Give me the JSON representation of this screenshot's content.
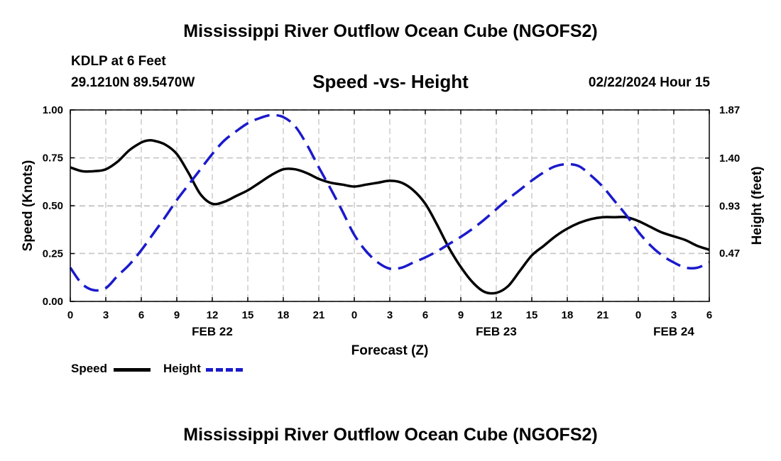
{
  "page": {
    "title": "Mississippi River Outflow Ocean Cube (NGOFS2)",
    "footer_title": "Mississippi River Outflow Ocean Cube (NGOFS2)",
    "station": "KDLP at 6 Feet",
    "coordinates": "29.1210N  89.5470W",
    "subtitle": "Speed -vs- Height",
    "timestamp": "02/22/2024 Hour 15"
  },
  "chart_data": {
    "type": "line",
    "title": "Speed -vs- Height",
    "xlabel": "Forecast (Z)",
    "ylabel_left": "Speed (Knots)",
    "ylabel_right": "Height (feet)",
    "x_range": [
      0,
      54
    ],
    "x_tick_values": [
      0,
      3,
      6,
      9,
      12,
      15,
      18,
      21,
      24,
      27,
      30,
      33,
      36,
      39,
      42,
      45,
      48,
      51,
      54
    ],
    "x_tick_labels": [
      "0",
      "3",
      "6",
      "9",
      "12",
      "15",
      "18",
      "21",
      "0",
      "3",
      "6",
      "9",
      "12",
      "15",
      "18",
      "21",
      "0",
      "3",
      "6"
    ],
    "date_labels": [
      {
        "label": "FEB 22",
        "at": 12
      },
      {
        "label": "FEB 23",
        "at": 36
      },
      {
        "label": "FEB 24",
        "at": 51
      }
    ],
    "ylim_left": [
      0,
      1.0
    ],
    "y_ticks_left": [
      "0.00",
      "0.25",
      "0.50",
      "0.75",
      "1.00"
    ],
    "ylim_right": [
      0,
      1.87
    ],
    "y_ticks_right": [
      "0.47",
      "0.93",
      "1.40",
      "1.87"
    ],
    "grid": true,
    "series": [
      {
        "name": "Speed",
        "axis": "left",
        "color": "#000000",
        "style": "solid",
        "x": [
          0,
          1,
          2,
          3,
          4,
          5,
          6,
          6.5,
          7,
          8,
          9,
          10,
          11,
          12,
          13,
          14,
          15,
          16,
          17,
          18,
          19,
          20,
          21,
          22,
          23,
          24,
          25,
          26,
          27,
          28,
          29,
          30,
          31,
          32,
          33,
          34,
          35,
          36,
          37,
          38,
          39,
          40,
          41,
          42,
          43,
          44,
          45,
          46,
          47,
          48,
          49,
          50,
          51,
          52,
          53,
          54
        ],
        "values": [
          0.7,
          0.68,
          0.68,
          0.69,
          0.73,
          0.79,
          0.83,
          0.84,
          0.84,
          0.82,
          0.77,
          0.67,
          0.56,
          0.51,
          0.52,
          0.55,
          0.58,
          0.62,
          0.66,
          0.69,
          0.69,
          0.67,
          0.64,
          0.62,
          0.61,
          0.6,
          0.61,
          0.62,
          0.63,
          0.62,
          0.58,
          0.51,
          0.4,
          0.28,
          0.18,
          0.1,
          0.05,
          0.045,
          0.08,
          0.16,
          0.24,
          0.29,
          0.34,
          0.38,
          0.41,
          0.43,
          0.44,
          0.44,
          0.44,
          0.42,
          0.39,
          0.36,
          0.34,
          0.32,
          0.29,
          0.27
        ]
      },
      {
        "name": "Height",
        "axis": "right",
        "color": "#1a1acc",
        "style": "dashed",
        "x": [
          0,
          1,
          2,
          3,
          4,
          5,
          6,
          7,
          8,
          9,
          10,
          11,
          12,
          13,
          14,
          15,
          16,
          17,
          18,
          19,
          20,
          21,
          22,
          23,
          24,
          25,
          26,
          27,
          28,
          29,
          30,
          31,
          32,
          33,
          34,
          35,
          36,
          37,
          38,
          39,
          40,
          41,
          42,
          43,
          44,
          45,
          46,
          47,
          48,
          49,
          50,
          51,
          52,
          53,
          54
        ],
        "values": [
          0.33,
          0.17,
          0.11,
          0.13,
          0.25,
          0.36,
          0.5,
          0.66,
          0.82,
          0.99,
          1.14,
          1.29,
          1.44,
          1.57,
          1.66,
          1.74,
          1.79,
          1.82,
          1.8,
          1.71,
          1.53,
          1.31,
          1.1,
          0.88,
          0.65,
          0.49,
          0.38,
          0.32,
          0.33,
          0.38,
          0.43,
          0.49,
          0.56,
          0.63,
          0.71,
          0.8,
          0.9,
          1.0,
          1.09,
          1.18,
          1.26,
          1.32,
          1.34,
          1.32,
          1.23,
          1.12,
          0.98,
          0.84,
          0.68,
          0.55,
          0.45,
          0.38,
          0.33,
          0.33,
          0.38
        ]
      }
    ]
  },
  "legend": {
    "speed_label": "Speed",
    "height_label": "Height"
  }
}
